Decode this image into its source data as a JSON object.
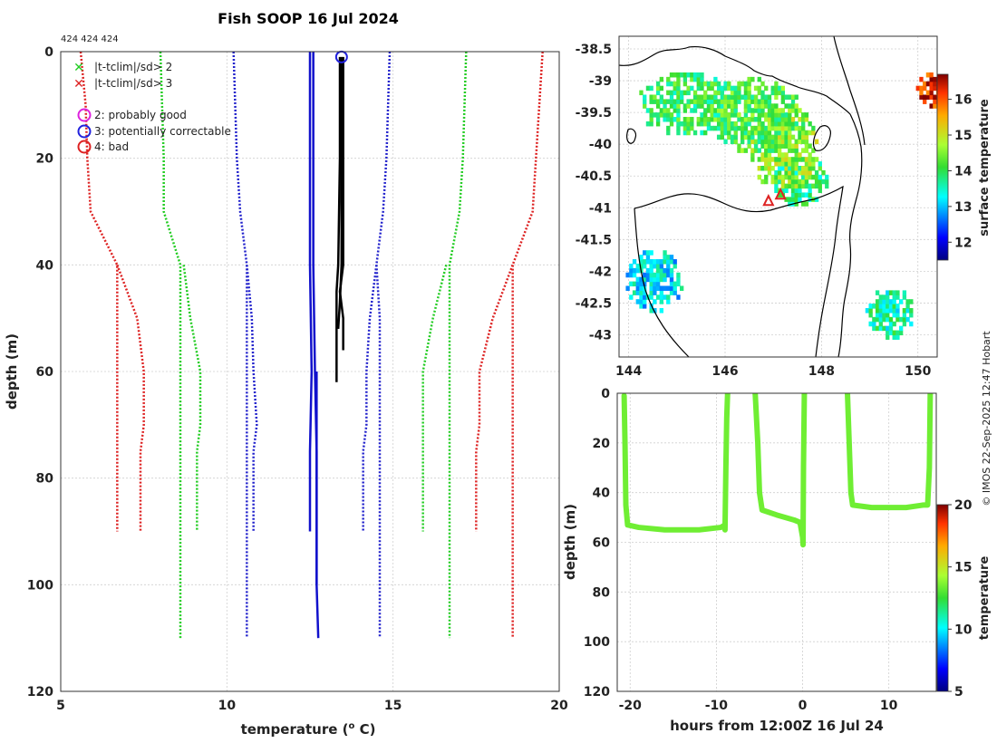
{
  "title": "Fish SOOP 16 Jul 2024",
  "ids_label": "424 424 424",
  "copyright": "© IMOS 22-Sep-2025 12:47 Hobart",
  "chart_data": [
    {
      "name": "profile",
      "type": "line",
      "xlabel": "temperature (",
      "xlabel_sup": "o",
      "xlabel_end": " C)",
      "ylabel": "depth (m)",
      "xlim": [
        5,
        20
      ],
      "ylim": [
        0,
        120
      ],
      "xticks": [
        5,
        10,
        15,
        20
      ],
      "yticks": [
        0,
        20,
        40,
        60,
        80,
        100,
        120
      ],
      "legend_markers": [
        {
          "symbol": "x",
          "label": "|t-tclim|/sd> 2",
          "color": "#22cc22"
        },
        {
          "symbol": "x",
          "label": "|t-tclim|/sd> 3",
          "color": "#dd2222"
        }
      ],
      "legend_flags": [
        {
          "symbol": "o",
          "label": "2: probably good",
          "color": "#dd22dd"
        },
        {
          "symbol": "o",
          "label": "3: potentially correctable",
          "color": "#2222dd"
        },
        {
          "symbol": "o",
          "label": "4: bad",
          "color": "#dd2222"
        }
      ],
      "series": [
        {
          "name": "clim-3sd-left",
          "color": "#dd2222",
          "dash": true,
          "depth": [
            0,
            10,
            20,
            30,
            40,
            50,
            60,
            70,
            80,
            90
          ],
          "temp": [
            5.6,
            5.75,
            5.8,
            5.9,
            6.7,
            6.7,
            6.7,
            6.7,
            6.7,
            6.7
          ]
        },
        {
          "name": "clim-3sd-left-b",
          "color": "#dd2222",
          "dash": true,
          "depth": [
            40,
            50,
            60,
            70,
            75,
            90
          ],
          "temp": [
            6.7,
            7.3,
            7.5,
            7.5,
            7.4,
            7.4
          ]
        },
        {
          "name": "clim-2sd-left",
          "color": "#22cc22",
          "dash": true,
          "depth": [
            0,
            10,
            20,
            30,
            40,
            50,
            60,
            70,
            80,
            90,
            110
          ],
          "temp": [
            8.0,
            8.05,
            8.1,
            8.1,
            8.6,
            8.6,
            8.6,
            8.6,
            8.6,
            8.6,
            8.6
          ]
        },
        {
          "name": "clim-2sd-left-b",
          "color": "#22cc22",
          "dash": true,
          "depth": [
            40,
            50,
            60,
            70,
            75,
            90
          ],
          "temp": [
            8.7,
            8.9,
            9.2,
            9.2,
            9.1,
            9.1
          ]
        },
        {
          "name": "clim-mean-left",
          "color": "#2222cc",
          "dash": true,
          "depth": [
            0,
            10,
            20,
            30,
            40,
            50,
            60,
            70,
            80,
            90,
            110
          ],
          "temp": [
            10.2,
            10.25,
            10.3,
            10.4,
            10.6,
            10.6,
            10.6,
            10.6,
            10.6,
            10.6,
            10.6
          ]
        },
        {
          "name": "clim-mean-left-b",
          "color": "#2222cc",
          "dash": true,
          "depth": [
            40,
            50,
            60,
            70,
            75,
            90
          ],
          "temp": [
            10.6,
            10.75,
            10.8,
            10.9,
            10.8,
            10.8
          ]
        },
        {
          "name": "clim-mean-right",
          "color": "#2222cc",
          "dash": true,
          "depth": [
            0,
            10,
            20,
            30,
            40,
            50,
            60,
            70,
            80,
            90,
            110
          ],
          "temp": [
            14.9,
            14.85,
            14.8,
            14.7,
            14.5,
            14.6,
            14.6,
            14.6,
            14.6,
            14.6,
            14.6
          ]
        },
        {
          "name": "clim-mean-right-b",
          "color": "#2222cc",
          "dash": true,
          "depth": [
            40,
            50,
            60,
            70,
            75,
            90
          ],
          "temp": [
            14.5,
            14.3,
            14.2,
            14.2,
            14.1,
            14.1
          ]
        },
        {
          "name": "clim-2sd-right",
          "color": "#22cc22",
          "dash": true,
          "depth": [
            0,
            10,
            20,
            30,
            40,
            50,
            60,
            70,
            80,
            90,
            110
          ],
          "temp": [
            17.2,
            17.15,
            17.1,
            17.0,
            16.7,
            16.7,
            16.7,
            16.7,
            16.7,
            16.7,
            16.7
          ]
        },
        {
          "name": "clim-2sd-right-b",
          "color": "#22cc22",
          "dash": true,
          "depth": [
            40,
            50,
            60,
            70,
            75,
            90
          ],
          "temp": [
            16.6,
            16.2,
            15.9,
            15.9,
            15.9,
            15.9
          ]
        },
        {
          "name": "clim-3sd-right",
          "color": "#dd2222",
          "dash": true,
          "depth": [
            0,
            10,
            20,
            30,
            40,
            50,
            60,
            70,
            80,
            90,
            110
          ],
          "temp": [
            19.5,
            19.4,
            19.3,
            19.2,
            18.6,
            18.6,
            18.6,
            18.6,
            18.6,
            18.6,
            18.6
          ]
        },
        {
          "name": "clim-3sd-right-b",
          "color": "#dd2222",
          "dash": true,
          "depth": [
            40,
            50,
            60,
            70,
            75,
            90
          ],
          "temp": [
            18.6,
            18.0,
            17.6,
            17.6,
            17.5,
            17.5
          ]
        },
        {
          "name": "obs-blue-a",
          "color": "#1111cc",
          "dash": false,
          "depth": [
            0,
            20,
            40,
            60,
            75,
            90
          ],
          "temp": [
            12.5,
            12.5,
            12.5,
            12.55,
            12.5,
            12.5
          ]
        },
        {
          "name": "obs-blue-b",
          "color": "#1111cc",
          "dash": false,
          "depth": [
            0,
            20,
            40,
            60,
            75,
            100
          ],
          "temp": [
            12.6,
            12.6,
            12.6,
            12.65,
            12.7,
            12.7
          ]
        },
        {
          "name": "obs-blue-c",
          "color": "#1111cc",
          "dash": false,
          "depth": [
            60,
            80,
            100,
            110
          ],
          "temp": [
            12.7,
            12.7,
            12.7,
            12.75
          ]
        },
        {
          "name": "obs-black-a",
          "color": "#000000",
          "dash": false,
          "depth": [
            1,
            20,
            40,
            45,
            48,
            55,
            62
          ],
          "temp": [
            13.4,
            13.4,
            13.35,
            13.3,
            13.3,
            13.3,
            13.3
          ]
        },
        {
          "name": "obs-black-b",
          "color": "#000000",
          "dash": false,
          "depth": [
            1,
            20,
            40,
            45,
            50,
            56
          ],
          "temp": [
            13.5,
            13.5,
            13.5,
            13.4,
            13.5,
            13.5
          ]
        },
        {
          "name": "obs-black-c",
          "color": "#000000",
          "dash": false,
          "depth": [
            1,
            20,
            40,
            47,
            52
          ],
          "temp": [
            13.45,
            13.45,
            13.45,
            13.4,
            13.35
          ]
        }
      ],
      "flag_points": [
        {
          "temp": 13.45,
          "depth": 1,
          "color": "#2222dd"
        }
      ]
    },
    {
      "name": "map",
      "type": "heatmap",
      "xlim": [
        143.8,
        150.4
      ],
      "ylim": [
        -43.35,
        -38.3
      ],
      "xticks": [
        144,
        146,
        148,
        150
      ],
      "xtick_labels": [
        "144",
        "146",
        "148",
        "150"
      ],
      "yticks": [
        -38.5,
        -39,
        -39.5,
        -40,
        -40.5,
        -41,
        -41.5,
        -42,
        -42.5,
        -43
      ],
      "ytick_labels": [
        "-38.5",
        "-39",
        "-39.5",
        "-40",
        "-40.5",
        "-41",
        "-41.5",
        "-42",
        "-42.5",
        "-43"
      ],
      "colorbar_label": "surface temperature",
      "colorbar_range": [
        11.5,
        16.7
      ],
      "colorbar_ticks": [
        12,
        13,
        14,
        15,
        16
      ],
      "colorbar_tick_labels": [
        "12",
        "13",
        "14",
        "15",
        "16"
      ],
      "drop_markers": [
        {
          "lon": 146.9,
          "lat": -40.9
        },
        {
          "lon": 147.15,
          "lat": -40.8
        }
      ]
    },
    {
      "name": "timeseries",
      "type": "scatter",
      "xlabel": "hours from 12:00Z 16 Jul 24",
      "ylabel": "depth (m)",
      "xlim": [
        -21.5,
        15.5
      ],
      "ylim": [
        0,
        120
      ],
      "xticks": [
        -20,
        -10,
        0,
        10
      ],
      "xtick_labels": [
        "-20",
        "-10",
        "0",
        "10"
      ],
      "yticks": [
        0,
        20,
        40,
        60,
        80,
        100,
        120
      ],
      "ytick_labels": [
        "0",
        "20",
        "40",
        "60",
        "80",
        "100",
        "120"
      ],
      "colorbar_label": "temperature",
      "colorbar_range": [
        5,
        20
      ],
      "colorbar_ticks": [
        5,
        10,
        15,
        20
      ],
      "colorbar_tick_labels": [
        "5",
        "10",
        "15",
        "20"
      ],
      "point_temp": 13.4,
      "tracks": [
        {
          "hours": [
            -20.7,
            -20.6,
            -20.5,
            -20.3,
            -19,
            -16,
            -12,
            -9.5,
            -9
          ],
          "depth": [
            1,
            20,
            45,
            53,
            54,
            55,
            55,
            54,
            53
          ]
        },
        {
          "hours": [
            -9,
            -8.9,
            -8.8,
            -8.7
          ],
          "depth": [
            55,
            30,
            10,
            0
          ]
        },
        {
          "hours": [
            -5.5,
            -5.2,
            -5.0,
            -4.7,
            -3,
            -1,
            -0.3,
            0,
            0.05,
            0.1,
            0.2
          ],
          "depth": [
            0,
            20,
            40,
            47,
            49,
            51,
            52,
            58,
            61,
            30,
            0
          ]
        },
        {
          "hours": [
            5.2,
            5.4,
            5.6,
            5.8,
            8,
            10,
            12,
            14,
            14.5,
            14.7,
            14.8
          ],
          "depth": [
            0,
            20,
            40,
            45,
            46,
            46,
            46,
            45,
            45,
            30,
            0
          ]
        }
      ]
    }
  ]
}
